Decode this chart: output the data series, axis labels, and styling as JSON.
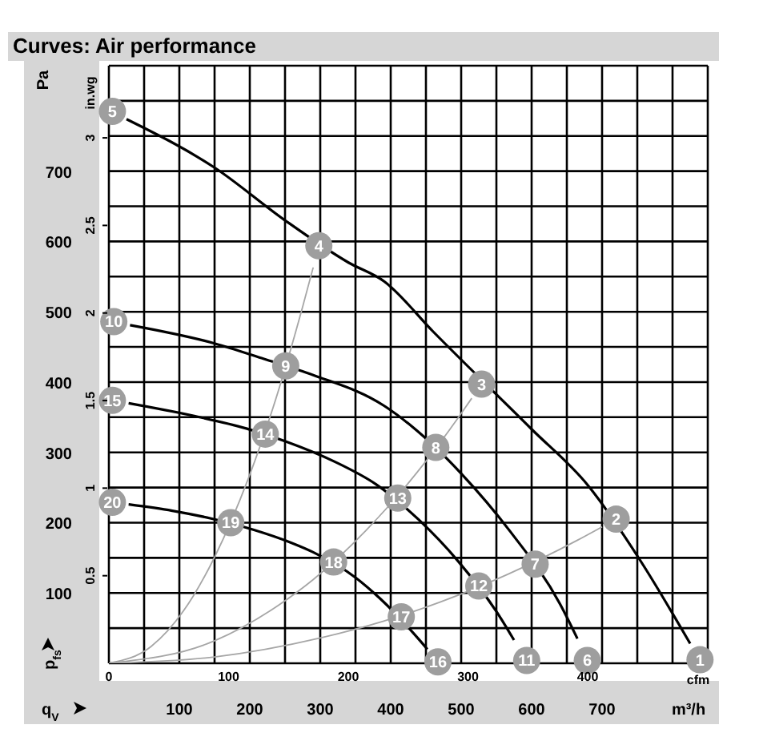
{
  "chart_data": {
    "type": "line",
    "title": "Curves: Air performance",
    "xlabel": "q$_{V}$",
    "ylabel": "p$_{fs}$",
    "x2label": "cfm",
    "y2label": "in.wg",
    "annotations": [
      "Pa",
      "m³/h",
      {
        "text": "1",
        "x": 839,
        "y": 5
      },
      {
        "text": "2",
        "x": 720,
        "y": 205
      },
      {
        "text": "3",
        "x": 529,
        "y": 397
      },
      {
        "text": "4",
        "x": 298,
        "y": 594
      },
      {
        "text": "5",
        "x": 5,
        "y": 785
      },
      {
        "text": "6",
        "x": 679,
        "y": 4
      },
      {
        "text": "7",
        "x": 605,
        "y": 141
      },
      {
        "text": "8",
        "x": 464,
        "y": 307
      },
      {
        "text": "9",
        "x": 251,
        "y": 423
      },
      {
        "text": "10",
        "x": 7,
        "y": 486
      },
      {
        "text": "11",
        "x": 593,
        "y": 4
      },
      {
        "text": "12",
        "x": 525,
        "y": 110
      },
      {
        "text": "13",
        "x": 410,
        "y": 235
      },
      {
        "text": "14",
        "x": 222,
        "y": 326
      },
      {
        "text": "15",
        "x": 5,
        "y": 374
      },
      {
        "text": "16",
        "x": 467,
        "y": 2
      },
      {
        "text": "17",
        "x": 415,
        "y": 66
      },
      {
        "text": "18",
        "x": 319,
        "y": 144
      },
      {
        "text": "19",
        "x": 173,
        "y": 200
      },
      {
        "text": "20",
        "x": 5,
        "y": 229
      }
    ],
    "xlim": [
      0,
      850
    ],
    "ylim": [
      0,
      850
    ],
    "x2lim": [
      0,
      500.3
    ],
    "y2lim": [
      0,
      3.412
    ],
    "xticks": [
      {
        "value": 0,
        "label": null
      },
      {
        "value": 50,
        "label": null
      },
      100,
      {
        "value": 150,
        "label": null
      },
      200,
      {
        "value": 250,
        "label": null
      },
      300,
      {
        "value": 350,
        "label": null
      },
      400,
      {
        "value": 450,
        "label": null
      },
      500,
      {
        "value": 550,
        "label": null
      },
      600,
      {
        "value": 650,
        "label": null
      },
      700,
      {
        "value": 750,
        "label": null
      },
      {
        "value": 800,
        "label": null
      },
      {
        "value": 850,
        "label": null
      }
    ],
    "yticks": [
      {
        "value": 0,
        "label": null
      },
      {
        "value": 50,
        "label": null
      },
      100,
      {
        "value": 150,
        "label": null
      },
      200,
      {
        "value": 250,
        "label": null
      },
      300,
      {
        "value": 350,
        "label": null
      },
      400,
      {
        "value": 450,
        "label": null
      },
      500,
      {
        "value": 550,
        "label": null
      },
      600,
      {
        "value": 650,
        "label": null
      },
      700,
      {
        "value": 750,
        "label": null
      },
      {
        "value": 800,
        "label": null
      },
      {
        "value": 850,
        "label": null
      }
    ],
    "x2ticks": [
      0,
      100,
      200,
      300,
      400
    ],
    "y2ticks": [
      0.5,
      1,
      1.5,
      2,
      2.5,
      3
    ],
    "grid": true,
    "series": [
      {
        "color": "#a6a6a6",
        "x": [
          0,
          60,
          120,
          150,
          198,
          236,
          275,
          290
        ],
        "values": [
          0,
          24,
          96,
          151,
          263,
          373,
          507,
          563
        ]
      },
      {
        "color": "#a6a6a6",
        "x": [
          0,
          150,
          240,
          290,
          365,
          437,
          497,
          515
        ],
        "values": [
          0,
          32,
          82,
          119,
          189,
          271,
          351,
          377
        ]
      },
      {
        "color": "#a6a6a6",
        "x": [
          0,
          150,
          300,
          390,
          470,
          565,
          665,
          700
        ],
        "values": [
          0,
          9,
          36,
          60,
          87,
          126,
          175,
          194
        ]
      },
      {
        "color": "#000000",
        "x": [
          25,
          150,
          250,
          340,
          391,
          460,
          600,
          680,
          755,
          825
        ],
        "values": [
          774,
          705,
          630,
          570,
          543,
          472,
          333,
          253,
          145,
          28
        ]
      },
      {
        "color": "#000000",
        "x": [
          30,
          150,
          220,
          290,
          391,
          430,
          500,
          570,
          640,
          665
        ],
        "values": [
          481,
          455,
          433,
          410,
          366,
          337,
          270,
          187,
          85,
          35
        ]
      },
      {
        "color": "#000000",
        "x": [
          28,
          120,
          195,
          250,
          320,
          380,
          440,
          495,
          555,
          575
        ],
        "values": [
          370,
          352,
          334,
          316,
          287,
          254,
          204,
          146,
          66,
          33
        ]
      },
      {
        "color": "#000000",
        "x": [
          28,
          90,
          145,
          205,
          260,
          290,
          350,
          385,
          440,
          452
        ],
        "values": [
          226,
          217,
          206,
          190,
          171,
          158,
          122,
          92,
          34,
          20
        ]
      }
    ]
  }
}
